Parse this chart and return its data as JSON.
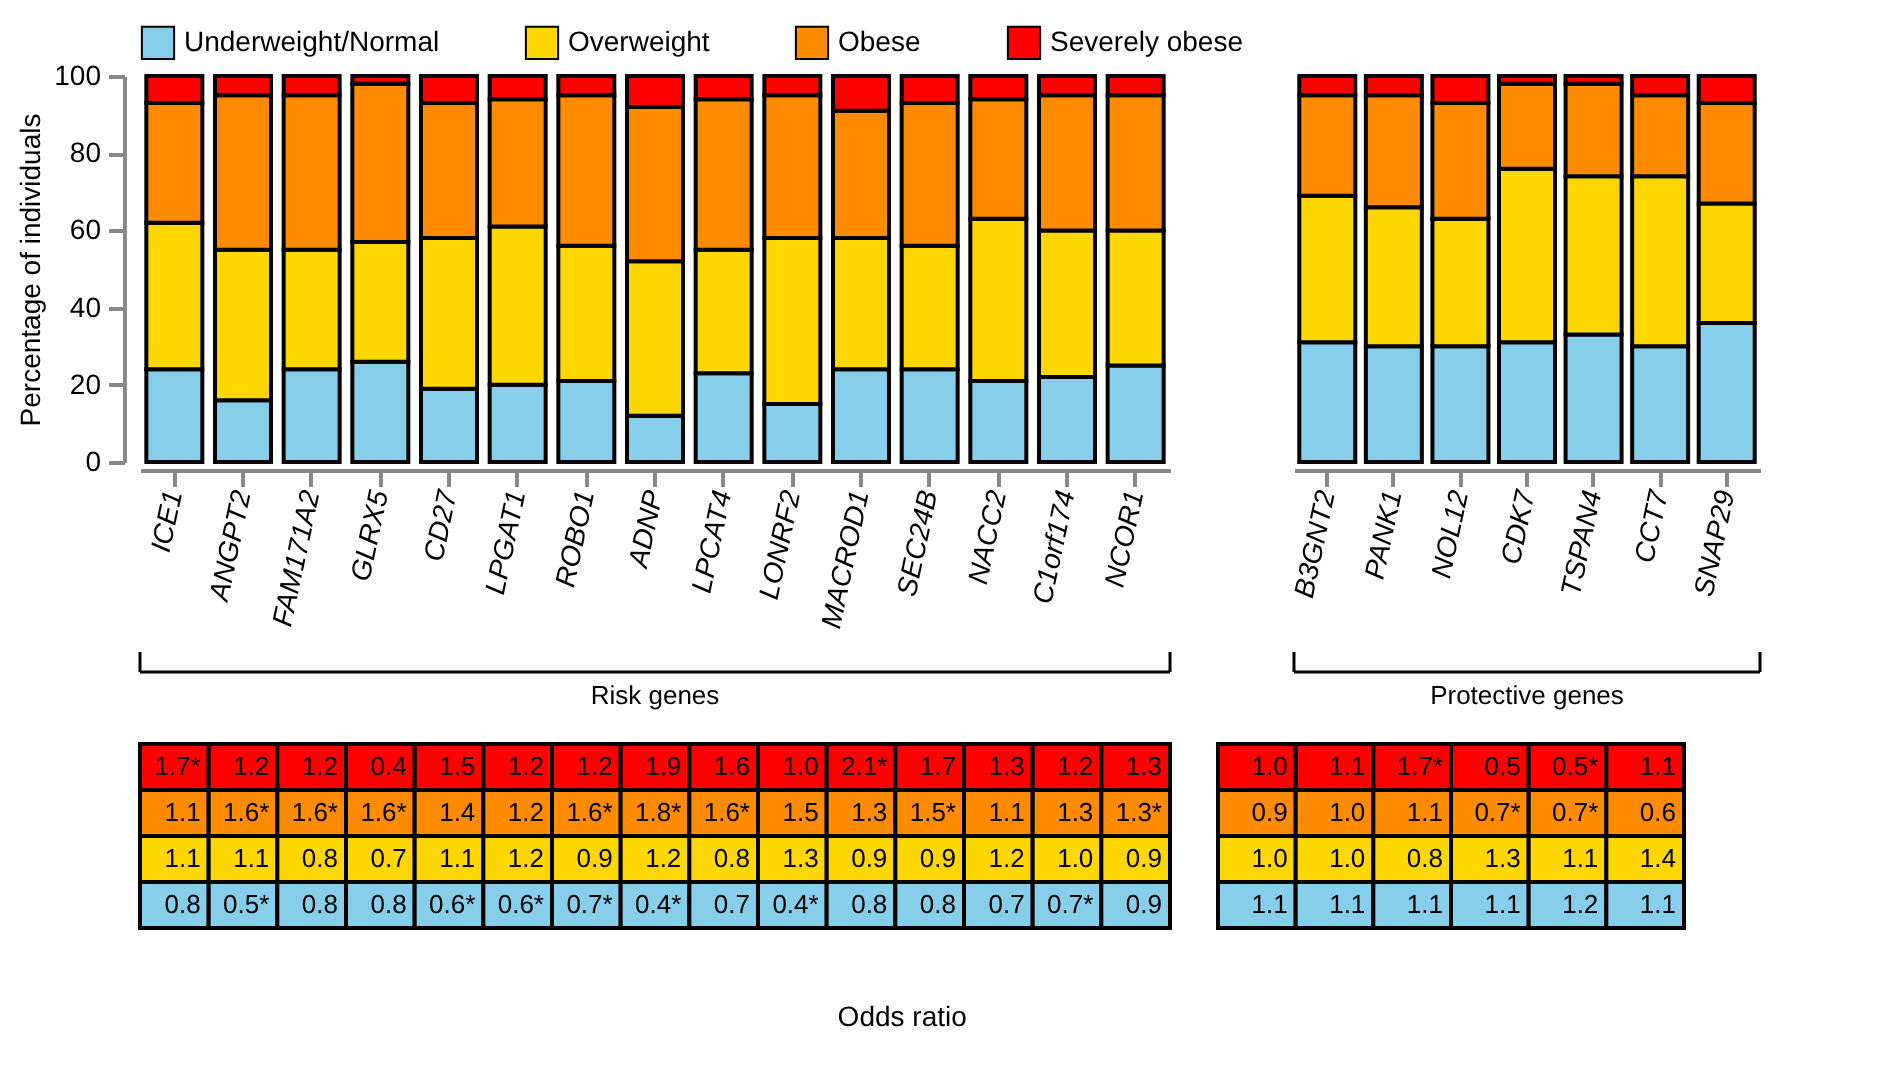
{
  "chart_data": [
    {
      "type": "bar",
      "stacked": true,
      "ylabel": "Percentage of individuals",
      "ylim": [
        0,
        100
      ],
      "yticks": [
        0,
        20,
        40,
        60,
        80,
        100
      ],
      "legend": "top",
      "categories": [
        "ICE1",
        "ANGPT2",
        "FAM171A2",
        "GLRX5",
        "CD27",
        "LPGAT1",
        "ROBO1",
        "ADNP",
        "LPCAT4",
        "LONRF2",
        "MACROD1",
        "SEC24B",
        "NACC2",
        "C1orf174",
        "NCOR1"
      ],
      "series": [
        {
          "name": "Underweight/Normal",
          "color": "#87ceeb",
          "values": [
            24,
            16,
            24,
            26,
            19,
            20,
            21,
            12,
            23,
            15,
            24,
            24,
            21,
            22,
            25
          ]
        },
        {
          "name": "Overweight",
          "color": "#ffd700",
          "values": [
            38,
            39,
            31,
            31,
            39,
            41,
            35,
            40,
            32,
            43,
            34,
            32,
            42,
            38,
            35
          ]
        },
        {
          "name": "Obese",
          "color": "#ff8c00",
          "values": [
            31,
            40,
            40,
            41,
            35,
            33,
            39,
            40,
            39,
            37,
            33,
            37,
            31,
            35,
            35
          ]
        },
        {
          "name": "Severely obese",
          "color": "#ff0000",
          "values": [
            7,
            5,
            5,
            2,
            7,
            6,
            5,
            8,
            6,
            5,
            9,
            7,
            6,
            5,
            5
          ]
        }
      ],
      "annotations": [
        "Risk genes"
      ]
    },
    {
      "type": "bar",
      "stacked": true,
      "ylim": [
        0,
        100
      ],
      "tick_labels": "x",
      "categories": [
        "B3GNT2",
        "PANK1",
        "NOL12",
        "CDK7",
        "TSPAN4",
        "CCT7",
        "SNAP29"
      ],
      "series": [
        {
          "color": "#87ceeb",
          "values": [
            31,
            30,
            30,
            31,
            33,
            30,
            36
          ]
        },
        {
          "color": "#ffd700",
          "values": [
            38,
            36,
            33,
            45,
            41,
            44,
            31
          ]
        },
        {
          "color": "#ff8c00",
          "values": [
            26,
            29,
            30,
            22,
            24,
            21,
            26
          ]
        },
        {
          "color": "#ff0000",
          "values": [
            5,
            5,
            7,
            2,
            2,
            5,
            7
          ]
        }
      ],
      "annotations": [
        "Protective genes"
      ]
    },
    {
      "type": "heatmap",
      "categories": [
        null,
        null,
        null,
        null,
        null,
        null,
        null,
        null,
        null,
        null,
        null,
        null,
        null,
        null,
        null
      ],
      "y_categories": [
        null,
        null,
        null,
        null
      ],
      "colors": [
        "#ff0000",
        "#ff8c00",
        "#ffd700",
        "#87ceeb"
      ],
      "cells": [
        [
          1.7,
          1.2,
          1.2,
          0.4,
          1.5,
          1.2,
          1.2,
          1.9,
          1.6,
          1.0,
          2.1,
          1.7,
          1.3,
          1.2,
          1.3
        ],
        [
          1.1,
          1.6,
          1.6,
          1.6,
          1.4,
          1.2,
          1.6,
          1.8,
          1.6,
          1.5,
          1.3,
          1.5,
          1.1,
          1.3,
          1.3
        ],
        [
          1.1,
          1.1,
          0.8,
          0.7,
          1.1,
          1.2,
          0.9,
          1.2,
          0.8,
          1.3,
          0.9,
          0.9,
          1.2,
          1.0,
          0.9
        ],
        [
          0.8,
          0.5,
          0.8,
          0.8,
          0.6,
          0.6,
          0.7,
          0.4,
          0.7,
          0.4,
          0.8,
          0.8,
          0.7,
          0.7,
          0.9
        ]
      ],
      "cell_labels": [
        [
          "1.7*",
          "1.2",
          "1.2",
          "0.4",
          "1.5",
          "1.2",
          "1.2",
          "1.9",
          "1.6",
          "1.0",
          "2.1*",
          "1.7",
          "1.3",
          "1.2",
          "1.3"
        ],
        [
          "1.1",
          "1.6*",
          "1.6*",
          "1.6*",
          "1.4",
          "1.2",
          "1.6*",
          "1.8*",
          "1.6*",
          "1.5",
          "1.3",
          "1.5*",
          "1.1",
          "1.3",
          "1.3*"
        ],
        [
          "1.1",
          "1.1",
          "0.8",
          "0.7",
          "1.1",
          "1.2",
          "0.9",
          "1.2",
          "0.8",
          "1.3",
          "0.9",
          "0.9",
          "1.2",
          "1.0",
          "0.9"
        ],
        [
          "0.8",
          "0.5*",
          "0.8",
          "0.8",
          "0.6*",
          "0.6*",
          "0.7*",
          "0.4*",
          "0.7",
          "0.4*",
          "0.8",
          "0.8",
          "0.7",
          "0.7*",
          "0.9"
        ]
      ],
      "annotations": [
        "Odds ratio"
      ]
    },
    {
      "type": "heatmap",
      "categories": [
        null,
        null,
        null,
        null,
        null,
        null
      ],
      "y_categories": [
        null,
        null,
        null,
        null
      ],
      "colors": [
        "#ff0000",
        "#ff8c00",
        "#ffd700",
        "#87ceeb"
      ],
      "cells": [
        [
          1.0,
          1.1,
          1.7,
          0.5,
          0.5,
          1.1
        ],
        [
          0.9,
          1.0,
          1.1,
          0.7,
          0.7,
          0.6
        ],
        [
          1.0,
          1.0,
          0.8,
          1.3,
          1.1,
          1.4
        ],
        [
          1.1,
          1.1,
          1.1,
          1.1,
          1.2,
          1.1
        ]
      ],
      "cell_labels": [
        [
          "1.0",
          "1.1",
          "1.7*",
          "0.5",
          "0.5*",
          "1.1"
        ],
        [
          "0.9",
          "1.0",
          "1.1",
          "0.7*",
          "0.7*",
          "0.6"
        ],
        [
          "1.0",
          "1.0",
          "0.8",
          "1.3",
          "1.1",
          "1.4"
        ],
        [
          "1.1",
          "1.1",
          "1.1",
          "1.1",
          "1.2",
          "1.1"
        ]
      ]
    }
  ]
}
